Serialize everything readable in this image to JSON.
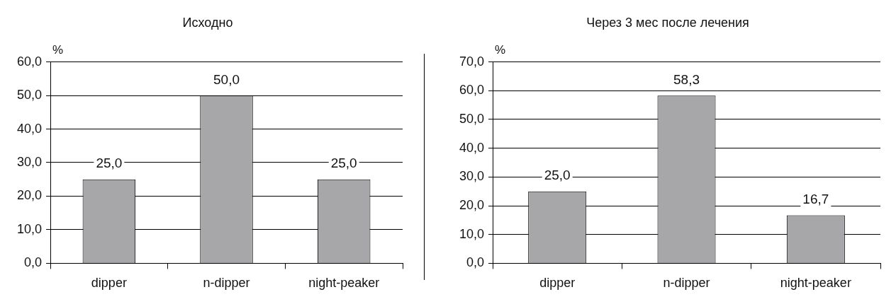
{
  "chart_data": [
    {
      "type": "bar",
      "title": "Исходно",
      "ylabel": "%",
      "categories": [
        "dipper",
        "n-dipper",
        "night-peaker"
      ],
      "values": [
        25.0,
        50.0,
        25.0
      ],
      "value_labels": [
        "25,0",
        "50,0",
        "25,0"
      ],
      "color": "#a7a7aa",
      "ylim": [
        0,
        60
      ],
      "yticks": [
        {
          "value": 0,
          "label": "0,0"
        },
        {
          "value": 10,
          "label": "10,0"
        },
        {
          "value": 20,
          "label": "20,0"
        },
        {
          "value": 30,
          "label": "30,0"
        },
        {
          "value": 40,
          "label": "40,0"
        },
        {
          "value": 50,
          "label": "50,0"
        },
        {
          "value": 60,
          "label": "60,0"
        }
      ],
      "grid": "y",
      "legend": false
    },
    {
      "type": "bar",
      "title": "Через 3 мес после лечения",
      "ylabel": "%",
      "categories": [
        "dipper",
        "n-dipper",
        "night-peaker"
      ],
      "values": [
        25.0,
        58.3,
        16.7
      ],
      "value_labels": [
        "25,0",
        "58,3",
        "16,7"
      ],
      "color": "#a7a7aa",
      "ylim": [
        0,
        70
      ],
      "yticks": [
        {
          "value": 0,
          "label": "0,0"
        },
        {
          "value": 10,
          "label": "10,0"
        },
        {
          "value": 20,
          "label": "20,0"
        },
        {
          "value": 30,
          "label": "30,0"
        },
        {
          "value": 40,
          "label": "40,0"
        },
        {
          "value": 50,
          "label": "50,0"
        },
        {
          "value": 60,
          "label": "60,0"
        },
        {
          "value": 70,
          "label": "70,0"
        }
      ],
      "grid": "y",
      "legend": false
    }
  ]
}
